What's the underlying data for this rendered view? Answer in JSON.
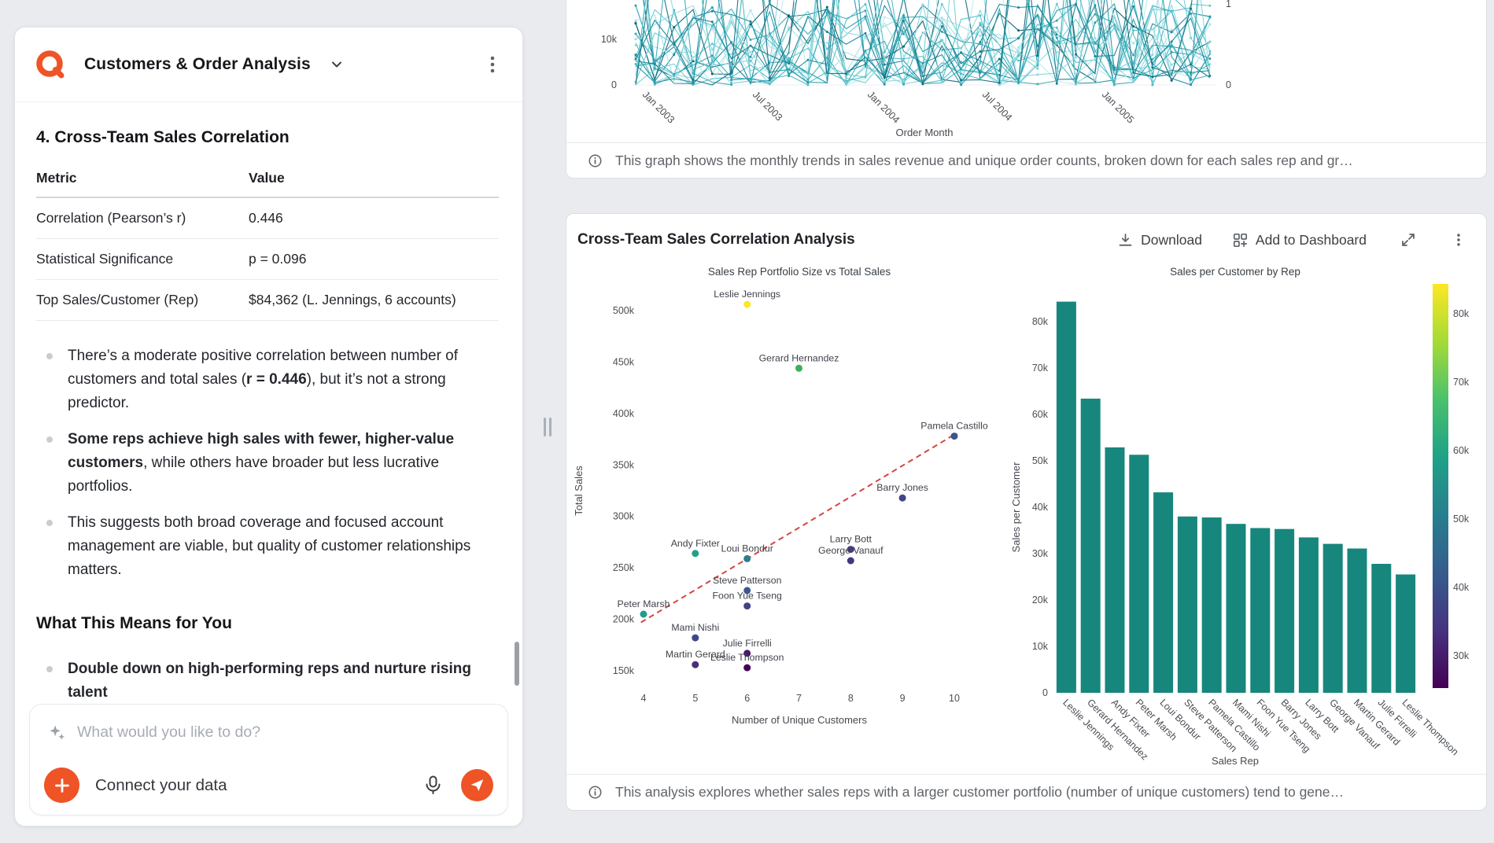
{
  "colors": {
    "accent": "#ee5426",
    "bar": "#17867c",
    "trend": "#d64541",
    "line_palette": [
      "#a9e2e6",
      "#8ad6dc",
      "#68c9d1",
      "#4bbac5",
      "#33a9b7",
      "#2397a7",
      "#188495",
      "#127182",
      "#0e5f6e",
      "#bfeaec",
      "#97dade",
      "#74cfd6",
      "#55c0ca",
      "#3aaebc",
      "#279caa",
      "#1b8a99"
    ]
  },
  "left_panel": {
    "title": "Customers & Order Analysis",
    "section_heading": "4. Cross-Team Sales Correlation",
    "table": {
      "headers": [
        "Metric",
        "Value"
      ],
      "rows": [
        [
          "Correlation (Pearson’s r)",
          "0.446"
        ],
        [
          "Statistical Significance",
          "p = 0.096"
        ],
        [
          "Top Sales/Customer (Rep)",
          "$84,362 (L. Jennings, 6 accounts)"
        ]
      ]
    },
    "bullets": [
      [
        {
          "t": "There’s a moderate positive correlation between number of customers and total sales ("
        },
        {
          "t": "r = 0.446",
          "b": true
        },
        {
          "t": "), but it’s not a strong predictor."
        }
      ],
      [
        {
          "t": "Some reps achieve high sales with fewer, higher-value customers",
          "b": true
        },
        {
          "t": ", while others have broader but less lucrative portfolios."
        }
      ],
      [
        {
          "t": "This suggests both broad coverage and focused account management are viable, but quality of customer relationships matters."
        }
      ]
    ],
    "subheading": "What This Means for You",
    "bullets2": [
      [
        {
          "t": "Double down on high-performing reps and nurture rising talent",
          "b": true
        }
      ]
    ],
    "chat_placeholder": "What would you like to do?",
    "connect_label": "Connect your data"
  },
  "top_chart_card": {
    "footer": "This graph shows the monthly trends in sales revenue and unique order counts, broken down for each sales rep and gr…",
    "chart_data": {
      "type": "line",
      "xlabel": "Order Month",
      "x_ticks": [
        "Jan 2003",
        "Jul 2003",
        "Jan 2004",
        "Jul 2004",
        "Jan 2005"
      ],
      "y_ticks_left": [
        "10k",
        "0"
      ],
      "y_ticks_right": [
        "1",
        "0"
      ],
      "note": "Dense multi-series monthly lines (sales revenue and unique order counts per sales rep); individual series values not legible in screenshot.",
      "num_series": 24
    }
  },
  "analysis_card": {
    "title": "Cross-Team Sales Correlation Analysis",
    "download_label": "Download",
    "dashboard_label": "Add to Dashboard",
    "footer": "This analysis explores whether sales reps with a larger customer portfolio (number of unique customers) tend to gene…",
    "chart_data": [
      {
        "type": "scatter",
        "title": "Sales Rep Portfolio Size vs Total Sales",
        "xlabel": "Number of Unique Customers",
        "ylabel": "Total Sales",
        "units": "y values in $ thousands",
        "xlim": [
          3.5,
          10.5
        ],
        "ylim": [
          130,
          530
        ],
        "x_tick_labels": [
          "4",
          "5",
          "6",
          "7",
          "8",
          "9",
          "10"
        ],
        "y_tick_labels": [
          "150k",
          "200k",
          "250k",
          "300k",
          "350k",
          "400k",
          "450k",
          "500k"
        ],
        "points": [
          {
            "name": "Leslie Jennings",
            "x": 6,
            "y": 506,
            "color": "#fde725"
          },
          {
            "name": "Gerard Hernandez",
            "x": 7,
            "y": 444,
            "color": "#3eb05a"
          },
          {
            "name": "Pamela Castillo",
            "x": 10,
            "y": 378,
            "color": "#3a568b"
          },
          {
            "name": "Barry Jones",
            "x": 9,
            "y": 318,
            "color": "#424486"
          },
          {
            "name": "Larry Bott",
            "x": 8,
            "y": 268,
            "color": "#453c81"
          },
          {
            "name": "Andy Fixter",
            "x": 5,
            "y": 264,
            "color": "#23a088"
          },
          {
            "name": "Loui Bondur",
            "x": 6,
            "y": 259,
            "color": "#2a7f8e"
          },
          {
            "name": "George Vanauf",
            "x": 8,
            "y": 257,
            "color": "#46347d"
          },
          {
            "name": "Steve Patterson",
            "x": 6,
            "y": 228,
            "color": "#38598c"
          },
          {
            "name": "Foon Yue Tseng",
            "x": 6,
            "y": 213,
            "color": "#414384"
          },
          {
            "name": "Peter Marsh",
            "x": 4,
            "y": 205,
            "color": "#219b8d"
          },
          {
            "name": "Mami Nishi",
            "x": 5,
            "y": 182,
            "color": "#3f4889"
          },
          {
            "name": "Julie Firrelli",
            "x": 6,
            "y": 167,
            "color": "#461a66"
          },
          {
            "name": "Martin Gerard",
            "x": 5,
            "y": 156,
            "color": "#472f7b"
          },
          {
            "name": "Leslie Thompson",
            "x": 6,
            "y": 153,
            "color": "#440556"
          }
        ],
        "trend_line": {
          "x1": 3.95,
          "y1": 197,
          "x2": 10.05,
          "y2": 381,
          "style": "dashed",
          "color": "#d64541"
        }
      },
      {
        "type": "bar",
        "title": "Sales per Customer by Rep",
        "xlabel": "Sales Rep",
        "ylabel": "Sales per Customer",
        "units": "$ thousands per customer",
        "ylim": [
          0,
          88
        ],
        "y_tick_labels": [
          "0",
          "10k",
          "20k",
          "30k",
          "40k",
          "50k",
          "60k",
          "70k",
          "80k"
        ],
        "categories": [
          "Leslie Jennings",
          "Gerard Hernandez",
          "Andy Fixter",
          "Peter Marsh",
          "Loui Bondur",
          "Steve Patterson",
          "Pamela Castillo",
          "Mami Nishi",
          "Foon Yue Tseng",
          "Barry Jones",
          "Larry Bott",
          "George Vanauf",
          "Martin Gerard",
          "Julie Firrelli",
          "Leslie Thompson"
        ],
        "values": [
          84.3,
          63.4,
          52.9,
          51.3,
          43.2,
          38.0,
          37.8,
          36.4,
          35.5,
          35.3,
          33.5,
          32.1,
          31.1,
          27.8,
          25.5
        ],
        "colorbar": {
          "tick_labels": [
            "80k",
            "70k",
            "60k",
            "50k",
            "40k",
            "30k"
          ],
          "gradient": [
            "#fde725",
            "#a5db36",
            "#4ac16d",
            "#1fa187",
            "#277f8e",
            "#365c8d",
            "#46327e",
            "#440154"
          ]
        }
      }
    ]
  }
}
